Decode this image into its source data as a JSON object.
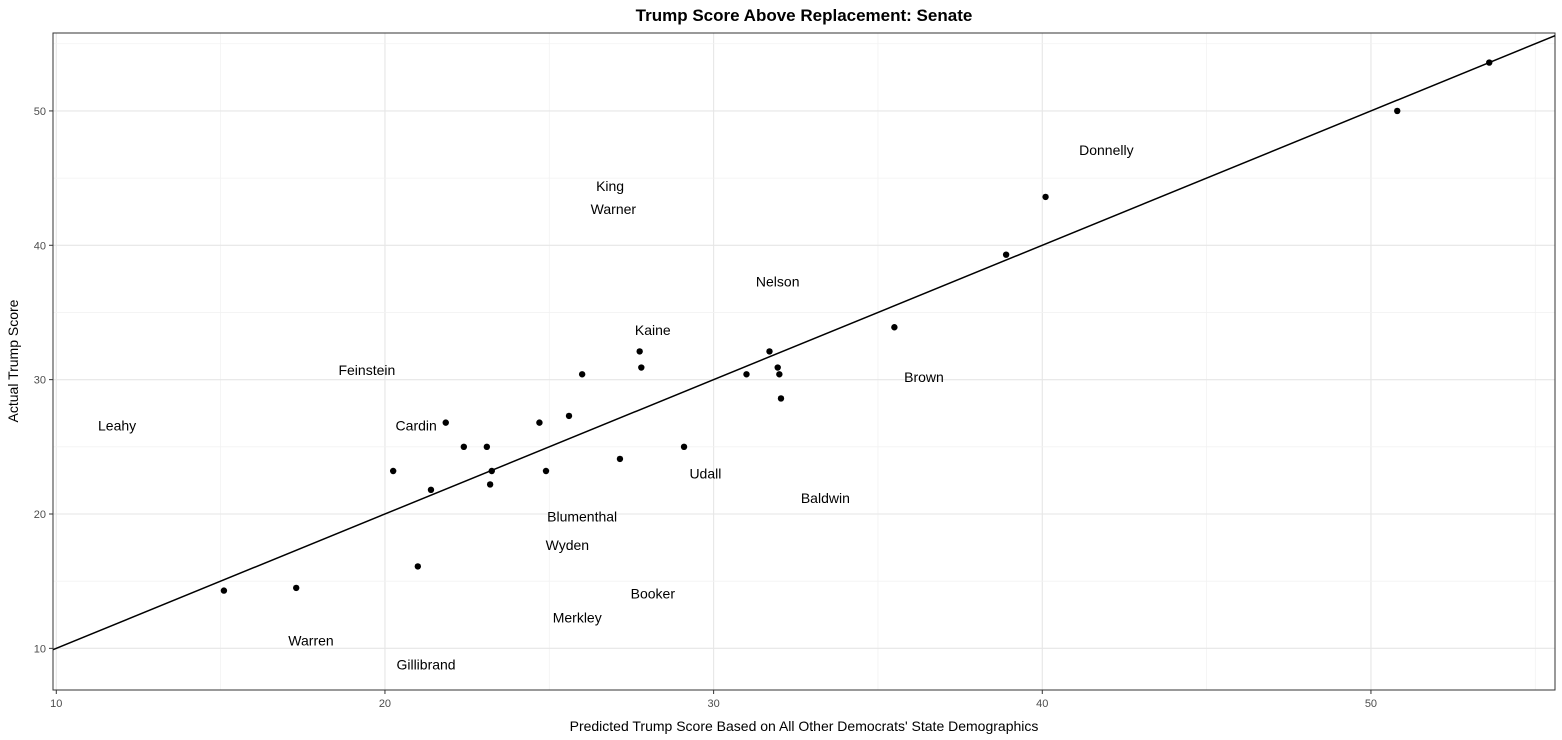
{
  "chart_data": {
    "type": "scatter",
    "title": "Trump Score Above Replacement: Senate",
    "xlabel": "Predicted Trump Score Based on All Other Democrats' State Demographics",
    "ylabel": "Actual Trump Score",
    "xlim": [
      9.9,
      55.6
    ],
    "ylim": [
      6.9,
      55.8
    ],
    "xticks": [
      10,
      20,
      30,
      40,
      50
    ],
    "yticks": [
      10,
      20,
      30,
      40,
      50
    ],
    "xtick_labels": [
      "10",
      "20",
      "30",
      "40",
      "50"
    ],
    "ytick_labels": [
      "10",
      "20",
      "30",
      "40",
      "50"
    ],
    "grid": true,
    "reference_line": {
      "type": "identity",
      "slope": 1,
      "intercept": 0
    },
    "points": [
      {
        "x": 15.1,
        "y": 14.3
      },
      {
        "x": 17.3,
        "y": 14.5
      },
      {
        "x": 20.25,
        "y": 23.2
      },
      {
        "x": 21.0,
        "y": 16.1
      },
      {
        "x": 21.4,
        "y": 21.8
      },
      {
        "x": 21.85,
        "y": 26.8
      },
      {
        "x": 22.4,
        "y": 25.0
      },
      {
        "x": 23.1,
        "y": 25.0
      },
      {
        "x": 23.2,
        "y": 22.2
      },
      {
        "x": 23.25,
        "y": 23.2
      },
      {
        "x": 24.7,
        "y": 26.8
      },
      {
        "x": 24.9,
        "y": 23.2
      },
      {
        "x": 25.6,
        "y": 27.3
      },
      {
        "x": 26.0,
        "y": 30.4
      },
      {
        "x": 27.15,
        "y": 24.1
      },
      {
        "x": 27.75,
        "y": 32.1
      },
      {
        "x": 27.8,
        "y": 30.9
      },
      {
        "x": 29.1,
        "y": 25.0
      },
      {
        "x": 31.0,
        "y": 30.4
      },
      {
        "x": 31.7,
        "y": 32.1
      },
      {
        "x": 31.95,
        "y": 30.9
      },
      {
        "x": 32.0,
        "y": 30.4
      },
      {
        "x": 32.05,
        "y": 28.6
      },
      {
        "x": 35.5,
        "y": 33.9
      },
      {
        "x": 38.9,
        "y": 39.3
      },
      {
        "x": 40.1,
        "y": 43.6
      },
      {
        "x": 50.8,
        "y": 50.0
      },
      {
        "x": 53.6,
        "y": 53.6
      }
    ],
    "labels": [
      {
        "text": "Donnelly",
        "x": 41.95,
        "y": 47.1
      },
      {
        "text": "King",
        "x": 26.85,
        "y": 44.4
      },
      {
        "text": "Warner",
        "x": 26.95,
        "y": 42.7
      },
      {
        "text": "Nelson",
        "x": 31.95,
        "y": 37.3
      },
      {
        "text": "Kaine",
        "x": 28.15,
        "y": 33.7
      },
      {
        "text": "Feinstein",
        "x": 19.45,
        "y": 30.7
      },
      {
        "text": "Brown",
        "x": 36.4,
        "y": 30.2
      },
      {
        "text": "Leahy",
        "x": 11.85,
        "y": 26.6
      },
      {
        "text": "Cardin",
        "x": 20.95,
        "y": 26.6
      },
      {
        "text": "Udall",
        "x": 29.75,
        "y": 23.0
      },
      {
        "text": "Baldwin",
        "x": 33.4,
        "y": 21.2
      },
      {
        "text": "Blumenthal",
        "x": 26.0,
        "y": 19.8
      },
      {
        "text": "Wyden",
        "x": 25.55,
        "y": 17.7
      },
      {
        "text": "Booker",
        "x": 28.15,
        "y": 14.1
      },
      {
        "text": "Merkley",
        "x": 25.85,
        "y": 12.3
      },
      {
        "text": "Warren",
        "x": 17.75,
        "y": 10.6
      },
      {
        "text": "Gillibrand",
        "x": 21.25,
        "y": 8.8
      }
    ]
  }
}
